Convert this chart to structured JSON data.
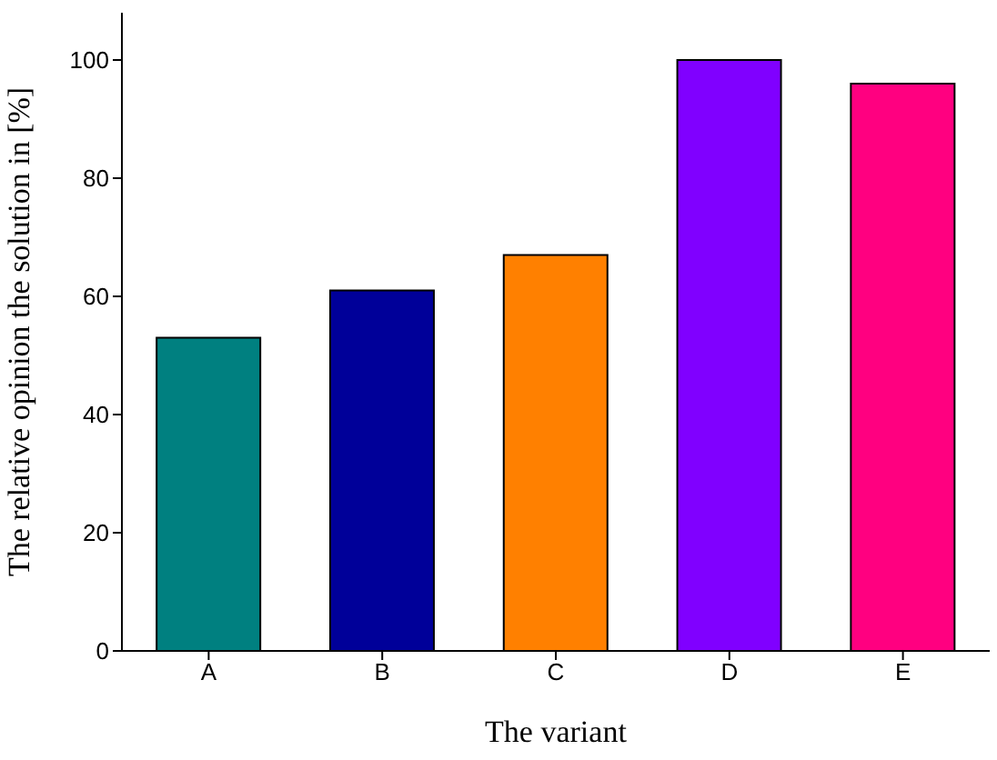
{
  "chart_data": {
    "type": "bar",
    "xlabel": "The variant",
    "ylabel": "The relative opinion the solution in [%]",
    "categories": [
      "A",
      "B",
      "C",
      "D",
      "E"
    ],
    "values": [
      53,
      61,
      67,
      100,
      96
    ],
    "colors": [
      "#008080",
      "#000099",
      "#ff8000",
      "#8000ff",
      "#ff0080"
    ],
    "ylim": [
      0,
      108
    ],
    "yticks": [
      0,
      20,
      40,
      60,
      80,
      100
    ],
    "grid": false,
    "legend": false
  }
}
